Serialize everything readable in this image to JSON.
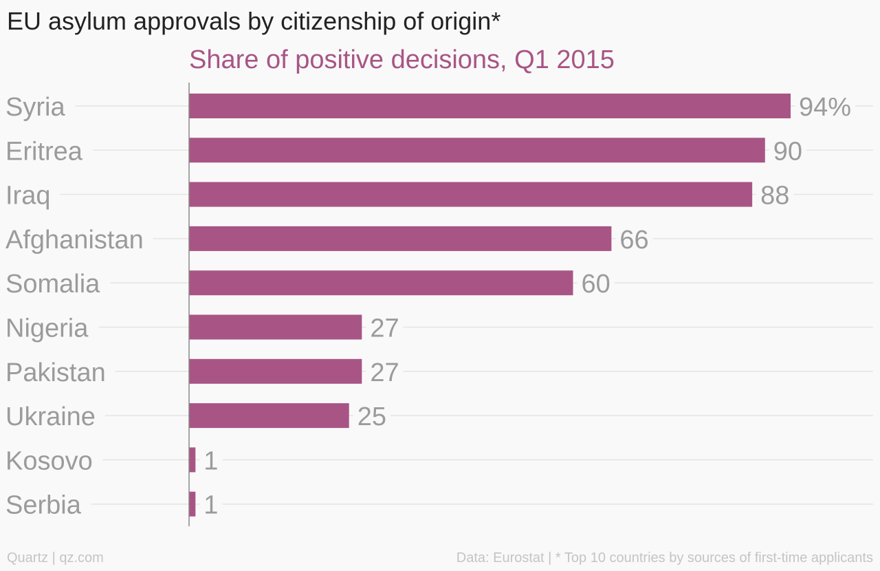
{
  "title": "EU asylum approvals by citizenship of origin*",
  "subtitle": "Share of positive decisions, Q1 2015",
  "footer_left": "Quartz | qz.com",
  "footer_right": "Data: Eurostat | * Top 10 countries by sources of first-time applicants",
  "colors": {
    "bar": "#a85585",
    "subtitle": "#a85585",
    "label": "#9b9b9b",
    "grid": "#e4e4e4",
    "axis": "#888888"
  },
  "chart_data": {
    "type": "bar",
    "orientation": "horizontal",
    "categories": [
      "Syria",
      "Eritrea",
      "Iraq",
      "Afghanistan",
      "Somalia",
      "Nigeria",
      "Pakistan",
      "Ukraine",
      "Kosovo",
      "Serbia"
    ],
    "values": [
      94,
      90,
      88,
      66,
      60,
      27,
      27,
      25,
      1,
      1
    ],
    "value_labels": [
      "94%",
      "90",
      "88",
      "66",
      "60",
      "27",
      "27",
      "25",
      "1",
      "1"
    ],
    "xlim": [
      0,
      94
    ],
    "grid": true
  }
}
